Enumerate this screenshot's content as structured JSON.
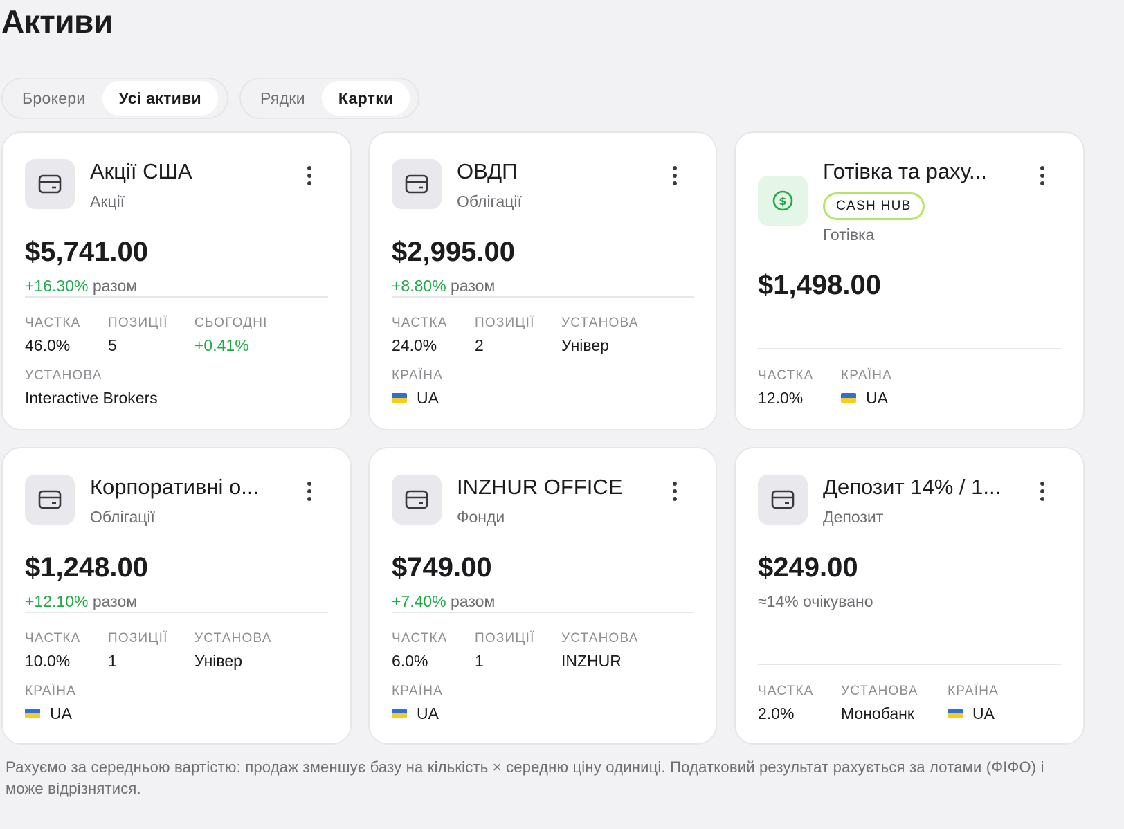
{
  "page": {
    "title": "Активи"
  },
  "view_toggle": {
    "options": [
      "Брокери",
      "Усі активи"
    ],
    "selected": "Усі активи"
  },
  "layout_toggle": {
    "options": [
      "Рядки",
      "Картки"
    ],
    "selected": "Картки"
  },
  "cards": [
    {
      "title": "Акції США",
      "subtitle": "Акції",
      "icon": "card-icon",
      "amount": "$5,741.00",
      "change_value": "+16.30%",
      "change_suffix": "разом",
      "stats": [
        {
          "label": "Частка",
          "value": "46.0%"
        },
        {
          "label": "Позиції",
          "value": "5"
        },
        {
          "label": "Сьогодні",
          "value": "+0.41%"
        },
        {
          "label": "Установа",
          "value": "Interactive Brokers"
        }
      ]
    },
    {
      "title": "ОВДП",
      "subtitle": "Облігації",
      "icon": "card-icon",
      "amount": "$2,995.00",
      "change_value": "+8.80%",
      "change_suffix": "разом",
      "stats": [
        {
          "label": "Частка",
          "value": "24.0%"
        },
        {
          "label": "Позиції",
          "value": "2"
        },
        {
          "label": "Установа",
          "value": "Універ"
        },
        {
          "label": "Країна",
          "value": "UA",
          "flag": "ua-flag-icon"
        }
      ]
    },
    {
      "title": "Готівка та раху...",
      "subtitle": "Готівка",
      "badge": "CASH HUB",
      "icon": "dollar-coin-icon",
      "amount": "$1,498.00",
      "stats": [
        {
          "label": "Частка",
          "value": "12.0%"
        },
        {
          "label": "Країна",
          "value": "UA",
          "flag": "ua-flag-icon"
        }
      ]
    },
    {
      "title": "Корпоративні о...",
      "subtitle": "Облігації",
      "icon": "card-icon",
      "amount": "$1,248.00",
      "change_value": "+12.10%",
      "change_suffix": "разом",
      "stats": [
        {
          "label": "Частка",
          "value": "10.0%"
        },
        {
          "label": "Позиції",
          "value": "1"
        },
        {
          "label": "Установа",
          "value": "Універ"
        },
        {
          "label": "Країна",
          "value": "UA",
          "flag": "ua-flag-icon"
        }
      ]
    },
    {
      "title": "INZHUR OFFICE",
      "subtitle": "Фонди",
      "icon": "card-icon",
      "amount": "$749.00",
      "change_value": "+7.40%",
      "change_suffix": "разом",
      "stats": [
        {
          "label": "Частка",
          "value": "6.0%"
        },
        {
          "label": "Позиції",
          "value": "1"
        },
        {
          "label": "Установа",
          "value": "INZHUR"
        },
        {
          "label": "Країна",
          "value": "UA",
          "flag": "ua-flag-icon"
        }
      ]
    },
    {
      "title": "Депозит 14% / 1...",
      "subtitle": "Депозит",
      "icon": "card-icon",
      "amount": "$249.00",
      "expected_text": "≈14% очікувано",
      "stats": [
        {
          "label": "Частка",
          "value": "2.0%"
        },
        {
          "label": "Установа",
          "value": "Монобанк"
        },
        {
          "label": "Країна",
          "value": "UA",
          "flag": "ua-flag-icon"
        }
      ]
    }
  ],
  "footnote": "Рахуємо за середньою вартістю: продаж зменшує базу на кількість × середню ціну одиниці. Податковий результат рахується за лотами (ФІФО) і може відрізнятися.",
  "colors": {
    "positive": "#23a94b",
    "badge_border": "#b7e36d",
    "background": "#f2f2f4"
  }
}
